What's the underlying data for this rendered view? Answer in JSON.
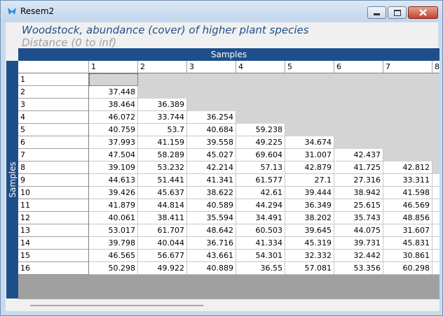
{
  "window": {
    "title": "Resem2"
  },
  "header": {
    "title": "Woodstock, abundance (cover) of higher plant species",
    "subtitle": "Distance (0 to inf)"
  },
  "table": {
    "column_group": "Samples",
    "row_group": "Samples",
    "columns": [
      "1",
      "2",
      "3",
      "4",
      "5",
      "6",
      "7",
      "8"
    ],
    "rows": [
      {
        "label": "1",
        "cells": []
      },
      {
        "label": "2",
        "cells": [
          "37.448"
        ]
      },
      {
        "label": "3",
        "cells": [
          "38.464",
          "36.389"
        ]
      },
      {
        "label": "4",
        "cells": [
          "46.072",
          "33.744",
          "36.254"
        ]
      },
      {
        "label": "5",
        "cells": [
          "40.759",
          "53.7",
          "40.684",
          "59.238"
        ]
      },
      {
        "label": "6",
        "cells": [
          "37.993",
          "41.159",
          "39.558",
          "49.225",
          "34.674"
        ]
      },
      {
        "label": "7",
        "cells": [
          "47.504",
          "58.289",
          "45.027",
          "69.604",
          "31.007",
          "42.437"
        ]
      },
      {
        "label": "8",
        "cells": [
          "39.109",
          "53.232",
          "42.214",
          "57.13",
          "42.879",
          "41.725",
          "42.812"
        ]
      },
      {
        "label": "9",
        "cells": [
          "44.613",
          "51.441",
          "41.341",
          "61.577",
          "27.1",
          "27.316",
          "33.311"
        ]
      },
      {
        "label": "10",
        "cells": [
          "39.426",
          "45.637",
          "38.622",
          "42.61",
          "39.444",
          "38.942",
          "41.598"
        ]
      },
      {
        "label": "11",
        "cells": [
          "41.879",
          "44.814",
          "40.589",
          "44.294",
          "36.349",
          "25.615",
          "46.569"
        ]
      },
      {
        "label": "12",
        "cells": [
          "40.061",
          "38.411",
          "35.594",
          "34.491",
          "38.202",
          "35.743",
          "48.856"
        ]
      },
      {
        "label": "13",
        "cells": [
          "53.017",
          "61.707",
          "48.642",
          "60.503",
          "39.645",
          "44.075",
          "31.607"
        ]
      },
      {
        "label": "14",
        "cells": [
          "39.798",
          "40.044",
          "36.716",
          "41.334",
          "45.319",
          "39.731",
          "45.831"
        ]
      },
      {
        "label": "15",
        "cells": [
          "46.565",
          "56.677",
          "43.661",
          "54.301",
          "32.332",
          "32.442",
          "30.861"
        ]
      },
      {
        "label": "16",
        "cells": [
          "50.298",
          "49.922",
          "40.889",
          "36.55",
          "57.081",
          "53.356",
          "60.298"
        ]
      }
    ]
  }
}
